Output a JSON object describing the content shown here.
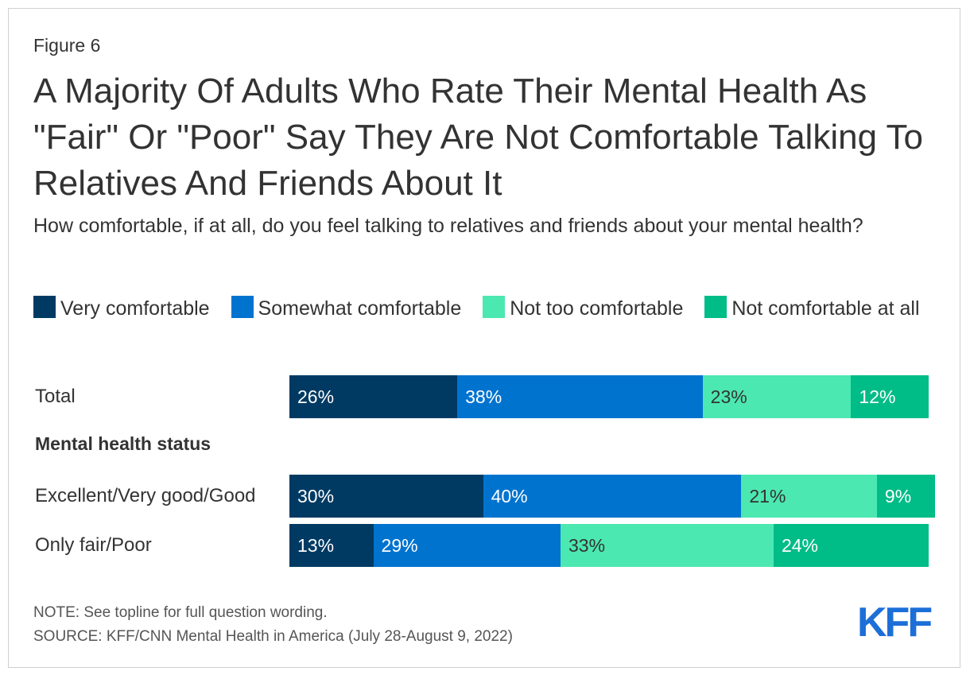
{
  "figure_label": "Figure 6",
  "chart_data": {
    "type": "bar",
    "orientation": "horizontal",
    "stacked": true,
    "title": "A Majority Of Adults Who Rate Their Mental Health As \"Fair\" Or \"Poor\" Say They Are Not Comfortable Talking To Relatives And Friends About It",
    "subtitle": "How comfortable, if at all, do you feel talking to relatives and friends about your mental health?",
    "group_label": "Mental health status",
    "categories": [
      "Total",
      "Excellent/Very good/Good",
      "Only fair/Poor"
    ],
    "series": [
      {
        "name": "Very comfortable",
        "color": "#003a63",
        "values": [
          26,
          30,
          13
        ],
        "labels": [
          "26%",
          "30%",
          "13%"
        ]
      },
      {
        "name": "Somewhat comfortable",
        "color": "#0073cf",
        "values": [
          38,
          40,
          29
        ],
        "labels": [
          "38%",
          "40%",
          "29%"
        ]
      },
      {
        "name": "Not too comfortable",
        "color": "#4ce8b2",
        "values": [
          23,
          21,
          33
        ],
        "labels": [
          "23%",
          "21%",
          "33%"
        ]
      },
      {
        "name": "Not comfortable at all",
        "color": "#00bc87",
        "values": [
          12,
          9,
          24
        ],
        "labels": [
          "12%",
          "9%",
          "24%"
        ]
      }
    ],
    "legend_position": "top",
    "xlim": [
      0,
      100
    ]
  },
  "notes": {
    "note": "NOTE: See topline for full question wording.",
    "source": "SOURCE: KFF/CNN Mental Health in America (July 28-August 9, 2022)"
  },
  "logo_text": "KFF"
}
